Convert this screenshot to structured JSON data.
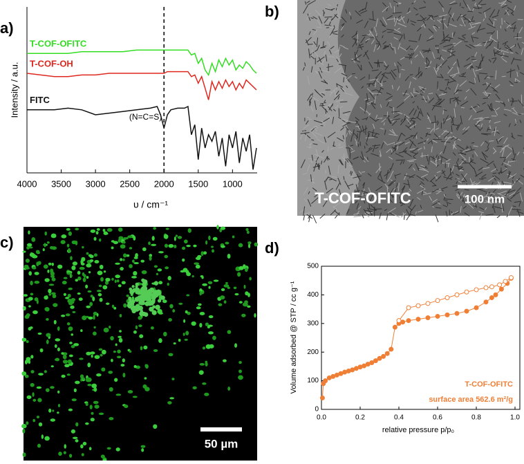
{
  "panel_labels": [
    "a)",
    "b)",
    "c)",
    "d)"
  ],
  "images": [
    {
      "label": "T-COF-OFITC",
      "scale_bar": "100 nm"
    },
    {
      "scale_bar": "50 µm"
    }
  ],
  "chart_data": [
    {
      "type": "line",
      "xlabel": "υ / cm⁻¹",
      "ylabel": "Intensity / a.u.",
      "x": [
        4000,
        3800,
        3600,
        3400,
        3200,
        3000,
        2800,
        2600,
        2400,
        2200,
        2100,
        2050,
        2000,
        1950,
        1900,
        1800,
        1700,
        1650,
        1600,
        1550,
        1500,
        1450,
        1400,
        1350,
        1300,
        1250,
        1200,
        1150,
        1100,
        1050,
        1000,
        950,
        900,
        850,
        800,
        750,
        700,
        650
      ],
      "xlim": [
        4000,
        640
      ],
      "xticks": [
        4000,
        3500,
        3000,
        2500,
        2000,
        1500,
        1000
      ],
      "ylim": [
        0,
        100
      ],
      "series": [
        {
          "name": "T-COF-OFITC",
          "color": "#33dd22",
          "values": [
            72,
            72,
            72,
            72,
            73,
            73,
            73,
            73,
            74,
            74,
            74,
            74,
            74,
            74,
            74,
            74,
            74,
            74,
            71,
            72,
            66,
            69,
            62,
            59,
            66,
            61,
            68,
            64,
            69,
            65,
            68,
            62,
            65,
            63,
            67,
            65,
            62,
            60
          ]
        },
        {
          "name": "T-COF-OH",
          "color": "#e0271e",
          "values": [
            60,
            59,
            58,
            58,
            59,
            59,
            60,
            60,
            60,
            60,
            60,
            60,
            60,
            61,
            61,
            61,
            61,
            61,
            58,
            59,
            54,
            58,
            51,
            44,
            55,
            50,
            55,
            51,
            56,
            52,
            55,
            50,
            54,
            51,
            56,
            54,
            52,
            50
          ]
        },
        {
          "name": "FITC",
          "color": "#111111",
          "values": [
            38,
            38,
            38,
            39,
            38,
            35,
            36,
            37,
            38,
            39,
            40,
            35,
            27,
            35,
            38,
            39,
            39,
            40,
            23,
            29,
            8,
            27,
            15,
            23,
            19,
            25,
            10,
            21,
            4,
            23,
            15,
            25,
            6,
            21,
            13,
            23,
            2,
            15
          ]
        }
      ],
      "annotations": [
        {
          "text": "(N=C=S)",
          "x": 2000
        }
      ]
    },
    {
      "type": "scatter",
      "xlabel": "relative pressure p/p₀",
      "ylabel": "Volume adsorbed @ STP / cc g⁻¹",
      "xlim": [
        0,
        1.05
      ],
      "xticks": [
        {
          "value": 0,
          "label": "0.0"
        },
        0.2,
        0.4,
        0.6,
        0.8,
        {
          "value": 1,
          "label": "1.0"
        }
      ],
      "ylim": [
        0,
        500
      ],
      "yticks": [
        0,
        100,
        200,
        300,
        400,
        500
      ],
      "legend_texts": [
        "T-COF-OFITC",
        "surface area 562.6 m²/g"
      ],
      "series": [
        {
          "marker": "filled",
          "color": "#f07f36",
          "x": [
            0.005,
            0.01,
            0.02,
            0.04,
            0.06,
            0.08,
            0.1,
            0.12,
            0.14,
            0.16,
            0.18,
            0.2,
            0.22,
            0.24,
            0.26,
            0.28,
            0.3,
            0.32,
            0.34,
            0.36,
            0.38,
            0.4,
            0.42,
            0.45,
            0.5,
            0.55,
            0.6,
            0.65,
            0.7,
            0.75,
            0.8,
            0.85,
            0.88,
            0.9,
            0.93,
            0.96,
            0.98
          ],
          "values": [
            40,
            90,
            100,
            110,
            115,
            120,
            125,
            130,
            134,
            138,
            143,
            148,
            152,
            158,
            163,
            170,
            178,
            185,
            195,
            210,
            287,
            300,
            305,
            310,
            315,
            320,
            325,
            330,
            335,
            343,
            355,
            375,
            390,
            400,
            420,
            440,
            458
          ]
        },
        {
          "marker": "open",
          "color": "#f07f36",
          "x": [
            0.98,
            0.95,
            0.92,
            0.88,
            0.85,
            0.8,
            0.75,
            0.7,
            0.65,
            0.6,
            0.55,
            0.5,
            0.45,
            0.4
          ],
          "values": [
            460,
            447,
            435,
            428,
            425,
            418,
            410,
            400,
            390,
            380,
            370,
            362,
            355,
            310
          ]
        }
      ]
    }
  ]
}
